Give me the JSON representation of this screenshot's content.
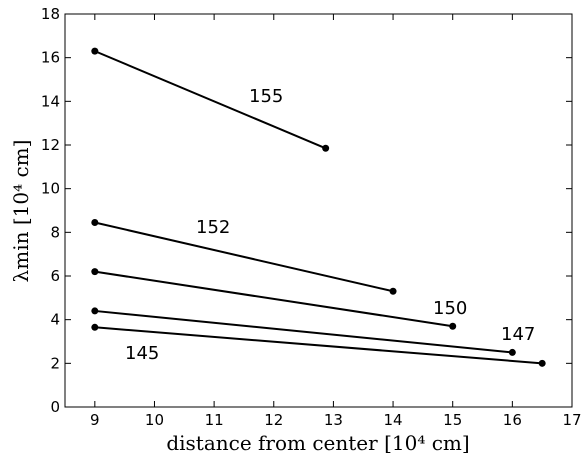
{
  "chart_data": {
    "type": "line",
    "xlabel": "distance from center  [10⁴ cm]",
    "ylabel": "λmin  [10⁴ cm]",
    "xlim": [
      8.5,
      17
    ],
    "ylim": [
      0,
      18
    ],
    "xticks": [
      "9",
      "10",
      "11",
      "12",
      "13",
      "14",
      "15",
      "16",
      "17"
    ],
    "yticks": [
      "0",
      "2",
      "4",
      "6",
      "8",
      "10",
      "12",
      "14",
      "16",
      "18"
    ],
    "grid": false,
    "legend": "none",
    "line_color": "#000000",
    "series": [
      {
        "name": "155",
        "x": [
          9,
          12.87
        ],
        "y": [
          16.3,
          11.85
        ]
      },
      {
        "name": "152",
        "x": [
          9,
          14
        ],
        "y": [
          8.45,
          5.3
        ]
      },
      {
        "name": "150",
        "x": [
          9,
          15
        ],
        "y": [
          6.2,
          3.7
        ]
      },
      {
        "name": "147",
        "x": [
          9,
          16
        ],
        "y": [
          4.4,
          2.5
        ]
      },
      {
        "name": "145",
        "x": [
          9,
          16.5
        ],
        "y": [
          3.65,
          2.0
        ]
      }
    ]
  }
}
